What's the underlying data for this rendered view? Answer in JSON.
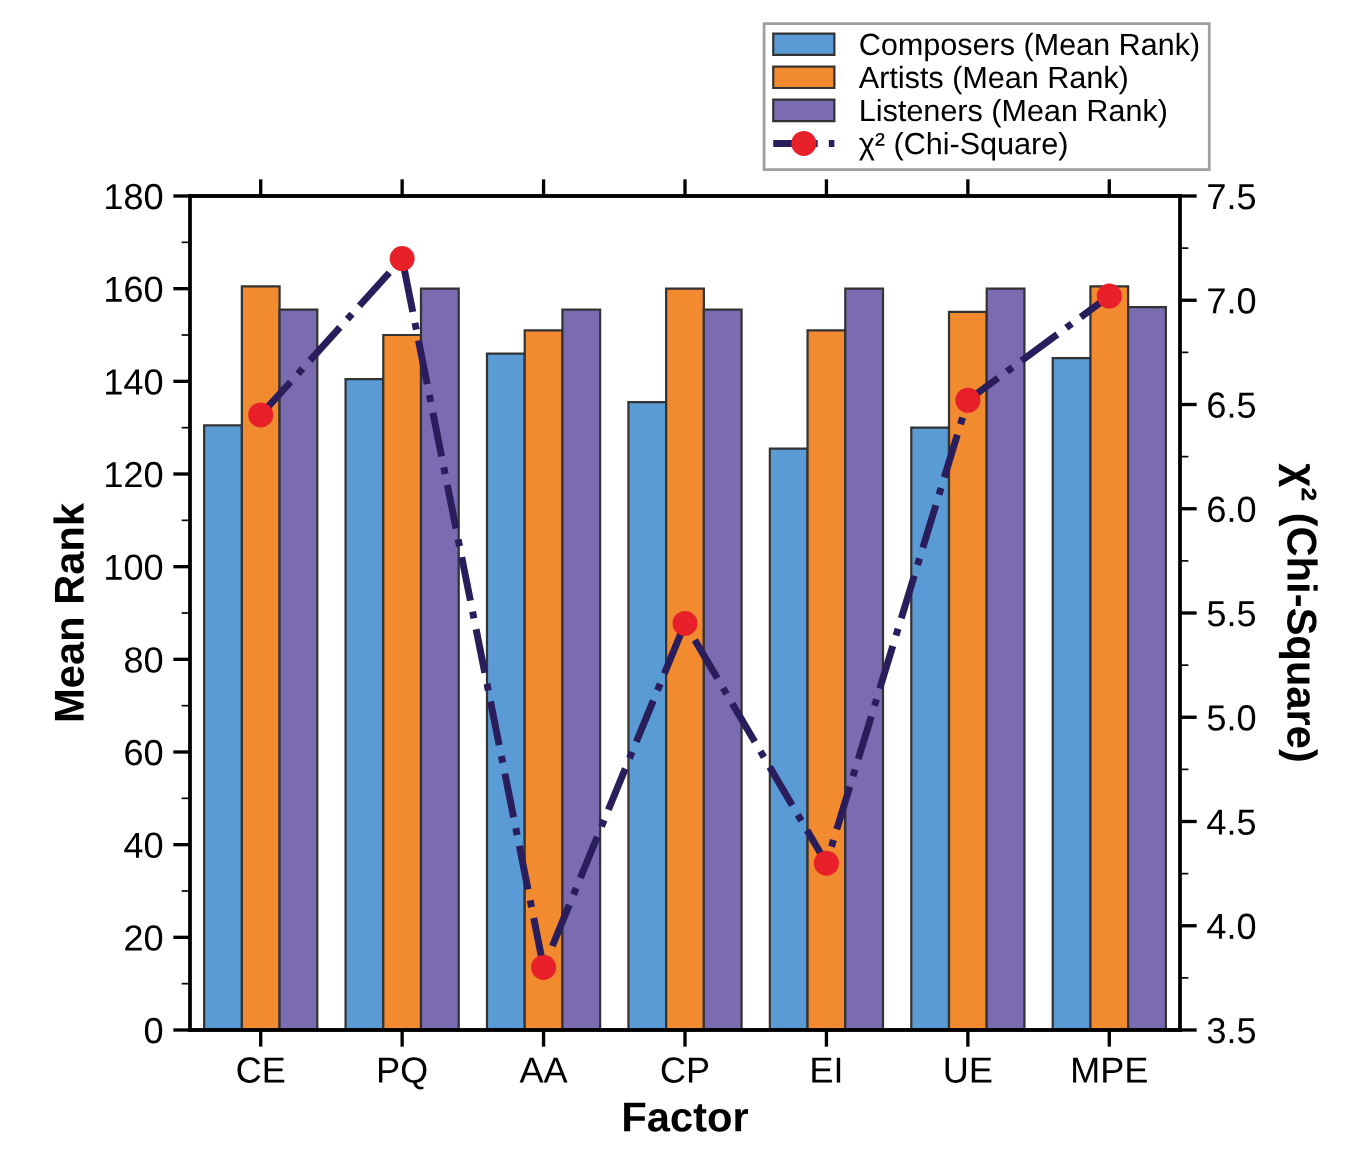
{
  "chart_data": {
    "type": "bar",
    "xlabel": "Factor",
    "ylabel": "Mean Rank",
    "y2label": "χ² (Chi-Square)",
    "categories": [
      "CE",
      "PQ",
      "AA",
      "CP",
      "EI",
      "UE",
      "MPE"
    ],
    "series": [
      {
        "name": "Composers (Mean Rank)",
        "color": "#5b9bd5",
        "values": [
          130.5,
          140.5,
          146,
          135.5,
          125.5,
          130,
          145
        ]
      },
      {
        "name": "Artists (Mean Rank)",
        "color": "#f28a30",
        "values": [
          160.5,
          150,
          151,
          160,
          151,
          155,
          160.5
        ]
      },
      {
        "name": "Listeners (Mean Rank)",
        "color": "#7b6bb0",
        "values": [
          155.5,
          160,
          155.5,
          155.5,
          160,
          160,
          156
        ]
      },
      {
        "name": "χ² (Chi-Square)",
        "type": "line",
        "axis": "y2",
        "color": "#2a1d5c",
        "marker": "circle",
        "line_style": "dashdot",
        "values": [
          6.45,
          7.2,
          3.8,
          5.45,
          4.3,
          6.52,
          7.02
        ]
      }
    ],
    "ylim": [
      0,
      180
    ],
    "yticks": [
      0,
      20,
      40,
      60,
      80,
      100,
      120,
      140,
      160,
      180
    ],
    "y2lim": [
      3.5,
      7.5
    ],
    "y2ticks": [
      {
        "value": 3.5,
        "label": "3.5"
      },
      {
        "value": 4.0,
        "label": "4.0"
      },
      {
        "value": 4.5,
        "label": "4.5"
      },
      {
        "value": 5.0,
        "label": "5.0"
      },
      {
        "value": 5.5,
        "label": "5.5"
      },
      {
        "value": 6.0,
        "label": "6.0"
      },
      {
        "value": 6.5,
        "label": "6.5"
      },
      {
        "value": 7.0,
        "label": "7.0"
      },
      {
        "value": 7.5,
        "label": "7.5"
      }
    ],
    "grid": false,
    "legend": "top right"
  }
}
